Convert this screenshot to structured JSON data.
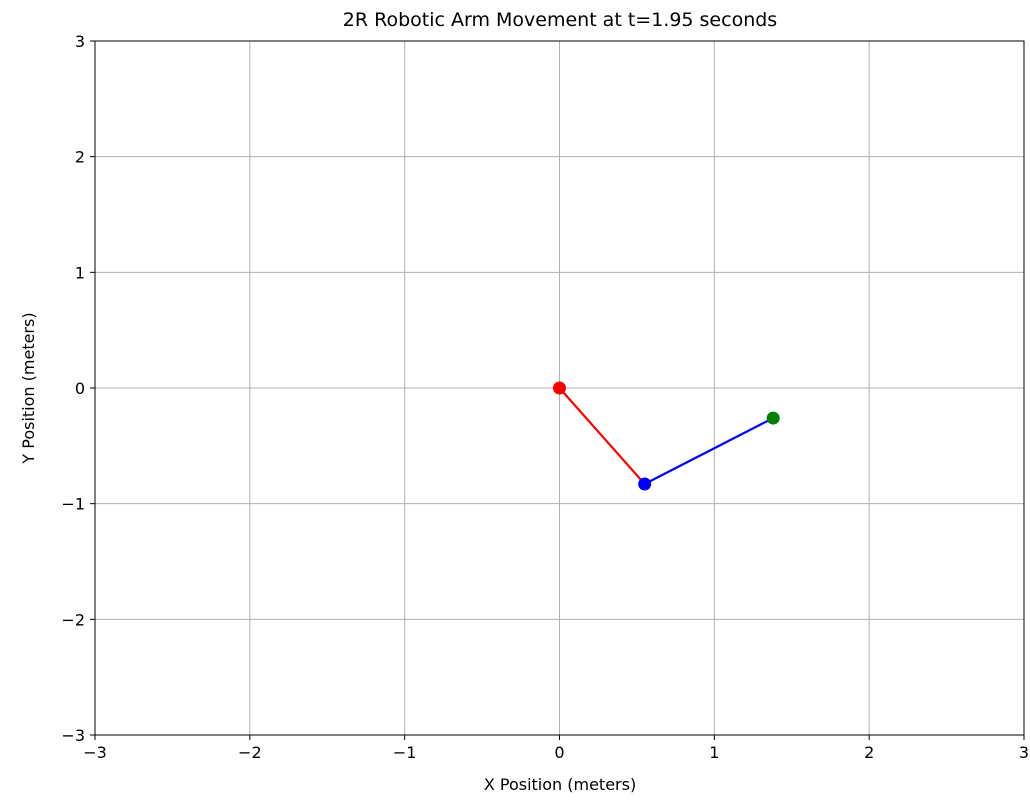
{
  "chart_data": {
    "type": "line",
    "title": "2R Robotic Arm Movement at t=1.95 seconds",
    "xlabel": "X Position (meters)",
    "ylabel": "Y Position (meters)",
    "xlim": [
      -3,
      3
    ],
    "ylim": [
      -3,
      3
    ],
    "xticks": [
      -3,
      -2,
      -1,
      0,
      1,
      2,
      3
    ],
    "yticks": [
      -3,
      -2,
      -1,
      0,
      1,
      2,
      3
    ],
    "xtick_labels": [
      "−3",
      "−2",
      "−1",
      "0",
      "1",
      "2",
      "3"
    ],
    "ytick_labels": [
      "−3",
      "−2",
      "−1",
      "0",
      "1",
      "2",
      "3"
    ],
    "grid": true,
    "series": [
      {
        "color": "#ff0000",
        "x": [
          0,
          0.55
        ],
        "y": [
          0,
          -0.83
        ]
      },
      {
        "color": "#0000ff",
        "x": [
          0.55,
          1.38
        ],
        "y": [
          -0.83,
          -0.26
        ]
      }
    ],
    "points": [
      {
        "x": 0,
        "y": 0,
        "color": "#ff0000"
      },
      {
        "x": 0.55,
        "y": -0.83,
        "color": "#0000ff"
      },
      {
        "x": 1.38,
        "y": -0.26,
        "color": "#008000"
      }
    ]
  }
}
